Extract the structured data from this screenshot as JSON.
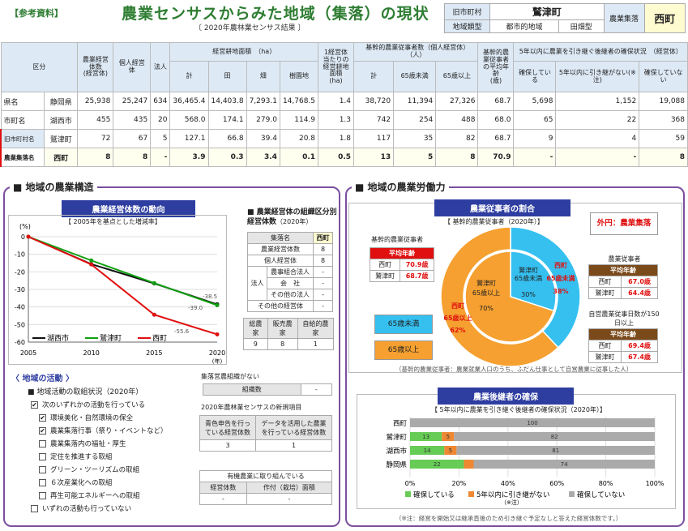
{
  "header": {
    "tag": "【参考資料】",
    "title": "農業センサスからみた地域（集落）の現状",
    "subtitle": "〔 2020年農林業センサス結果 〕",
    "id_labels": {
      "old": "旧市町村",
      "name": "鷲津町",
      "agri": "農業集落",
      "agri_name": "西町",
      "region": "地域類型",
      "region_val": "都市的地域",
      "flat": "田畑型"
    }
  },
  "table": {
    "h_area": "区分",
    "h_mgmt": "農業経営体数",
    "h_mgmt_unit": "(経営体)",
    "h_ind": "個人経営体",
    "h_corp": "法人",
    "h_land": "経営耕地面積　（ha）",
    "h_total": "計",
    "h_paddy": "田",
    "h_field": "畑",
    "h_orch": "樹園地",
    "h_per": "1経営体当たりの経営耕地面積",
    "h_per_unit": "(ha)",
    "h_work": "基幹的農業従事者数（個人経営体）　（人）",
    "h_wtotal": "計",
    "h_u65": "65歳未満",
    "h_o65": "65歳以上",
    "h_age": "基幹的農業従事者の平均年齢",
    "h_age_unit": "(歳)",
    "h_succ": "5年以内に農業を引き継ぐ後継者の確保状況　（経営体）",
    "h_s1": "確保している",
    "h_s2": "5年以内に引き継がない",
    "h_s2n": "(※注)",
    "h_s3": "確保していない",
    "rows": [
      {
        "k": "県名",
        "n": "静岡県",
        "v": [
          "25,938",
          "25,247",
          "634",
          "36,465.4",
          "14,403.8",
          "7,293.1",
          "14,768.5",
          "1.4",
          "38,720",
          "11,394",
          "27,326",
          "68.7",
          "5,698",
          "1,152",
          "19,088"
        ]
      },
      {
        "k": "市町名",
        "n": "湖西市",
        "v": [
          "455",
          "435",
          "20",
          "568.0",
          "174.1",
          "279.0",
          "114.9",
          "1.3",
          "742",
          "254",
          "488",
          "68.0",
          "65",
          "22",
          "368"
        ]
      },
      {
        "k": "旧市町村名",
        "k2": "S25",
        "n": "鷲津町",
        "v": [
          "72",
          "67",
          "5",
          "127.1",
          "66.8",
          "39.4",
          "20.8",
          "1.8",
          "117",
          "35",
          "82",
          "68.7",
          "9",
          "4",
          "59"
        ]
      },
      {
        "k": "農業集落名",
        "n": "西町",
        "v": [
          "8",
          "8",
          "-",
          "3.9",
          "0.3",
          "3.4",
          "0.1",
          "0.5",
          "13",
          "5",
          "8",
          "70.9",
          "-",
          "-",
          "8"
        ]
      }
    ]
  },
  "left": {
    "title": "■ 地域の農業構造",
    "trend_title": "農業経営体数の動向",
    "trend_sub": "【 2005年を基点とした増減率】",
    "org_title": "■ 農業経営体の組織区分別経営体数",
    "org_year": "（2020年）",
    "org_h1": "集落名",
    "org_h2": "西町",
    "org_rows": [
      [
        "農業経営体数",
        "8"
      ],
      [
        "個人経営体",
        "8"
      ],
      [
        "農事組合法人",
        "-"
      ],
      [
        "会　社",
        "-"
      ],
      [
        "その他の法人",
        "-"
      ],
      [
        "その他の経営体",
        "-"
      ]
    ],
    "org_hou": "法人",
    "sales_h": [
      "総農家",
      "販売農家",
      "自給的農家"
    ],
    "sales_v": [
      "9",
      "8",
      "1"
    ],
    "act_title": "〈 地域の活動 〉",
    "act_sub": "■ 地域活動の取組状況（2020年）",
    "acts": [
      [
        "✔",
        "次のいずれかの活動を行っている"
      ],
      [
        "✔",
        "環境美化・自然環境の保全"
      ],
      [
        "✔",
        "農業集落行事（祭り・イベントなど）"
      ],
      [
        "",
        "農業集落内の福祉・厚生"
      ],
      [
        "",
        "定住を推進する取組"
      ],
      [
        "",
        "グリーン・ツーリズムの取組"
      ],
      [
        "",
        "６次産業化への取組"
      ],
      [
        "",
        "再生可能エネルギーへの取組"
      ],
      [
        "",
        "いずれの活動も行っていない"
      ]
    ],
    "meet_title": "集落営農組織がない",
    "meet_h": "組織数",
    "meet_v": "-",
    "new_title": "2020年農林業センサスの新規項目",
    "new_h": [
      "青色申告を行っている経営体数",
      "データを活用した農業を行っている経営体数"
    ],
    "new_v": [
      "3",
      "1"
    ],
    "org2_title": "有機農業に取り組んでいる",
    "org2_h": [
      "経営体数",
      "作付（栽培）面積"
    ],
    "org2_v": [
      "-",
      "-"
    ]
  },
  "right": {
    "title": "■ 地域の農業労働力",
    "ratio_title": "農業従事者の割合",
    "ratio_sub": "【 基幹的農業従事者（2020年）】",
    "outer_label": "外円：農業集落",
    "avg_label": "平均年齢",
    "wk_title": "基幹的農業従事者",
    "ages": [
      [
        "西町",
        "70.9歳"
      ],
      [
        "鷲津町",
        "68.7歳"
      ]
    ],
    "rt_title": "農業従事者",
    "rt_rows": [
      [
        "西町",
        "67.0歳"
      ],
      [
        "鷲津町",
        "64.4歳"
      ]
    ],
    "rt2_title": "自営農業従事日数が150日以上",
    "rt2_rows": [
      [
        "西町",
        "69.4歳"
      ],
      [
        "鷲津町",
        "67.4歳"
      ]
    ],
    "l_u65": "65歳未満",
    "l_o65": "65歳以上",
    "pie_in_u": "鷲津町",
    "pie_in_u2": "65歳未満",
    "pie_in_u3": "30%",
    "pie_in_o": "鷲津町",
    "pie_in_o2": "65歳以上",
    "pie_in_o3": "70%",
    "pie_out_u": "西町",
    "pie_out_u2": "65歳未満",
    "pie_out_u3": "38%",
    "pie_out_o": "西町",
    "pie_out_o2": "65歳以上",
    "pie_out_o3": "62%",
    "note": "（基幹的農業従事者：農業就業人口のうち、ふだん仕事として自営農業に従事した人）",
    "succ_title": "農業後継者の確保",
    "succ_sub": "【 5年以内に農業を引き継ぐ後継者の確保状況（2020年）】",
    "succ_note": "（※注）",
    "foot": "（※注：経営を開始又は継承直後のため引き継ぐ予定なしと答えた経営体数です。）"
  },
  "chart_data": [
    {
      "type": "line",
      "title": "農業経営体数の動向",
      "subtitle": "【 2005年を基点とした増減率】",
      "ylabel": "(%)",
      "xlabel": "(年)",
      "x": [
        2005,
        2010,
        2015,
        2020
      ],
      "ylim": [
        -60,
        0
      ],
      "yticks": [
        0,
        -10,
        -20,
        -30,
        -40,
        -50,
        -60
      ],
      "series": [
        {
          "name": "湖西市",
          "values": [
            0,
            -15.6,
            -26.6,
            -38.5
          ],
          "color": "#111111"
        },
        {
          "name": "鷲津町",
          "values": [
            0,
            -13.5,
            -26.4,
            -39.0
          ],
          "color": "#11a011"
        },
        {
          "name": "西町",
          "values": [
            0,
            -15.8,
            -44.4,
            -55.6
          ],
          "color": "#e01010"
        }
      ],
      "data_labels": [
        "-38.5",
        "-39.0",
        "-55.6"
      ]
    },
    {
      "type": "pie",
      "title": "農業従事者の割合",
      "series": [
        {
          "name": "鷲津町",
          "values": [
            30,
            70
          ]
        },
        {
          "name": "西町",
          "values": [
            38,
            62
          ]
        }
      ],
      "categories": [
        "65歳未満",
        "65歳以上"
      ],
      "colors": [
        "#35c0f0",
        "#f5a030"
      ]
    },
    {
      "type": "bar",
      "title": "5年以内に農業を引き継ぐ後継者の確保状況（2020年）",
      "stacked": true,
      "categories": [
        "西町",
        "鷲津町",
        "湖西市",
        "静岡県"
      ],
      "series": [
        {
          "name": "確保している",
          "values": [
            0,
            13,
            14,
            22
          ],
          "color": "#66cc55"
        },
        {
          "name": "5年以内に引き継がない",
          "values": [
            0,
            5,
            5,
            4
          ],
          "color": "#ee8833"
        },
        {
          "name": "確保していない",
          "values": [
            100,
            82,
            81,
            74
          ],
          "color": "#aaaaaa"
        }
      ],
      "xlim": [
        0,
        100
      ],
      "xticks": [
        "0%",
        "20%",
        "40%",
        "60%",
        "80%",
        "100%"
      ]
    }
  ]
}
